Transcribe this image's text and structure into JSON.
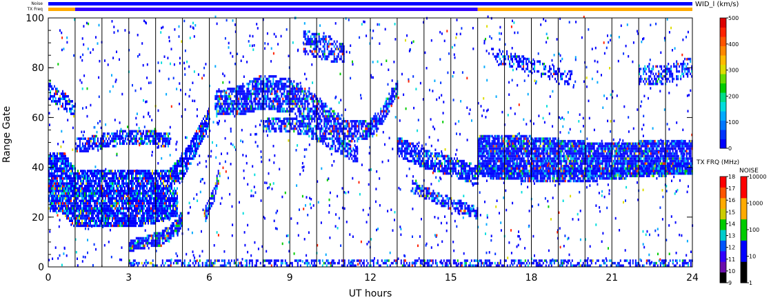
{
  "header": {
    "noise_label": "Noise",
    "txfreq_label": "TX Freq"
  },
  "colorbars": {
    "width": {
      "title": "WID_l (km/s)",
      "ticks": [
        "500",
        "400",
        "300",
        "200",
        "100",
        "0"
      ],
      "colors": [
        "#0000ff",
        "#0033ff",
        "#0077ff",
        "#00aaff",
        "#00dddd",
        "#00dd88",
        "#00cc00",
        "#66dd00",
        "#dddd00",
        "#ffbb00",
        "#ff8800",
        "#ff5500",
        "#ff2200",
        "#dd0000"
      ]
    },
    "txfreq": {
      "title": "TX FRQ (MHz)",
      "ticks": [
        "18",
        "17",
        "16",
        "15",
        "14",
        "13",
        "12",
        "11",
        "10",
        "9"
      ],
      "colors": [
        "#000000",
        "#6a0dad",
        "#3300ff",
        "#0055ff",
        "#00cccc",
        "#00cc00",
        "#cccc00",
        "#ffaa00",
        "#ff5500",
        "#ff0000"
      ]
    },
    "noise": {
      "title": "NOISE",
      "ticks": [
        "10000",
        "1000",
        "100",
        "10",
        "1"
      ],
      "colors": [
        "#000000",
        "#0000ff",
        "#00cc00",
        "#ffaa00",
        "#ff0000"
      ]
    }
  },
  "chart_data": {
    "type": "heatmap",
    "xlabel": "UT hours",
    "ylabel": "Range Gate",
    "xlim": [
      0,
      24
    ],
    "ylim": [
      0,
      100
    ],
    "xticks": [
      "0",
      "3",
      "6",
      "9",
      "12",
      "15",
      "18",
      "21",
      "24"
    ],
    "yticks": [
      "0",
      "20",
      "40",
      "60",
      "80",
      "100"
    ],
    "scan_lines_ut": [
      1,
      2,
      3,
      4,
      5,
      6,
      7,
      8,
      9,
      10,
      11,
      12,
      13,
      14,
      15,
      16,
      17,
      18,
      19,
      20,
      21,
      22,
      23
    ],
    "noise_bar": {
      "color": "#0000ff",
      "range": [
        0,
        24
      ]
    },
    "txfreq_bar": [
      {
        "from": 0,
        "to": 1,
        "color": "#ffaa00"
      },
      {
        "from": 1,
        "to": 16,
        "color": "#3300ff"
      },
      {
        "from": 16,
        "to": 24,
        "color": "#ffaa00"
      }
    ],
    "echo_bands": [
      {
        "ut": [
          0,
          0.2,
          0.6,
          1.0,
          3.0,
          4.5,
          5.0,
          5.5,
          6.0
        ],
        "gate": [
          38,
          38,
          38,
          33,
          34,
          35,
          40,
          50,
          60
        ],
        "thickness": [
          14,
          14,
          12,
          10,
          6,
          6,
          8,
          8,
          6
        ],
        "density": 0.85
      },
      {
        "ut": [
          0,
          0.5,
          1.0,
          3.0,
          4.0,
          4.8
        ],
        "gate": [
          27,
          27,
          23,
          23,
          24,
          26
        ],
        "thickness": [
          8,
          10,
          14,
          14,
          12,
          10
        ],
        "density": 0.9
      },
      {
        "ut": [
          0,
          0.5,
          1.0
        ],
        "gate": [
          70,
          67,
          62
        ],
        "thickness": [
          5,
          5,
          4
        ],
        "density": 0.6
      },
      {
        "ut": [
          1.0,
          2.0,
          3.0,
          4.0,
          4.5
        ],
        "gate": [
          48,
          50,
          52,
          51,
          50
        ],
        "thickness": [
          4,
          4,
          4,
          4,
          4
        ],
        "density": 0.7
      },
      {
        "ut": [
          3.0,
          3.5,
          4.2,
          4.8,
          5.0
        ],
        "gate": [
          8,
          9,
          11,
          16,
          20
        ],
        "thickness": [
          3,
          3,
          4,
          4,
          5
        ],
        "density": 0.9
      },
      {
        "ut": [
          5.8,
          6.0,
          6.2,
          6.4
        ],
        "gate": [
          20,
          25,
          30,
          40
        ],
        "thickness": [
          4,
          4,
          4,
          4
        ],
        "density": 0.7
      },
      {
        "ut": [
          6.2,
          7.0,
          8.0,
          9.0,
          10.0,
          11.0,
          12.0,
          12.5,
          13.0
        ],
        "gate": [
          65,
          66,
          70,
          68,
          62,
          54,
          55,
          62,
          72
        ],
        "thickness": [
          8,
          10,
          12,
          12,
          10,
          8,
          6,
          6,
          4
        ],
        "density": 0.75
      },
      {
        "ut": [
          8.0,
          9.0,
          10.0,
          11.0,
          11.5
        ],
        "gate": [
          56,
          57,
          53,
          47,
          44
        ],
        "thickness": [
          4,
          4,
          4,
          4,
          4
        ],
        "density": 0.7
      },
      {
        "ut": [
          9.5,
          10.5,
          11.0
        ],
        "gate": [
          90,
          87,
          85
        ],
        "thickness": [
          8,
          8,
          6
        ],
        "density": 0.6
      },
      {
        "ut": [
          13.0,
          14.0,
          15.0,
          16.0
        ],
        "gate": [
          48,
          43,
          40,
          36
        ],
        "thickness": [
          6,
          6,
          6,
          6
        ],
        "density": 0.8
      },
      {
        "ut": [
          13.5,
          14.5,
          15.5,
          16.0
        ],
        "gate": [
          32,
          27,
          23,
          21
        ],
        "thickness": [
          3,
          3,
          3,
          3
        ],
        "density": 0.7
      },
      {
        "ut": [
          16.0,
          18.0,
          20.0,
          22.0,
          24.0
        ],
        "gate": [
          45,
          44,
          43,
          43,
          44
        ],
        "thickness": [
          14,
          14,
          12,
          12,
          12
        ],
        "density": 0.9
      },
      {
        "ut": [
          16.0,
          18.0,
          20.0,
          22.0,
          24.0
        ],
        "gate": [
          38,
          36,
          36,
          38,
          39
        ],
        "thickness": [
          3,
          3,
          3,
          3,
          3
        ],
        "density": 0.8
      },
      {
        "ut": [
          16.5,
          18.0,
          19.5
        ],
        "gate": [
          85,
          80,
          75
        ],
        "thickness": [
          4,
          4,
          4
        ],
        "density": 0.4
      },
      {
        "ut": [
          22.0,
          23.0,
          24.0
        ],
        "gate": [
          76,
          77,
          80
        ],
        "thickness": [
          6,
          6,
          6
        ],
        "density": 0.5
      },
      {
        "ut": [
          3.0,
          24.0
        ],
        "gate": [
          1,
          1
        ],
        "thickness": [
          2,
          2
        ],
        "density": 0.5
      }
    ]
  }
}
